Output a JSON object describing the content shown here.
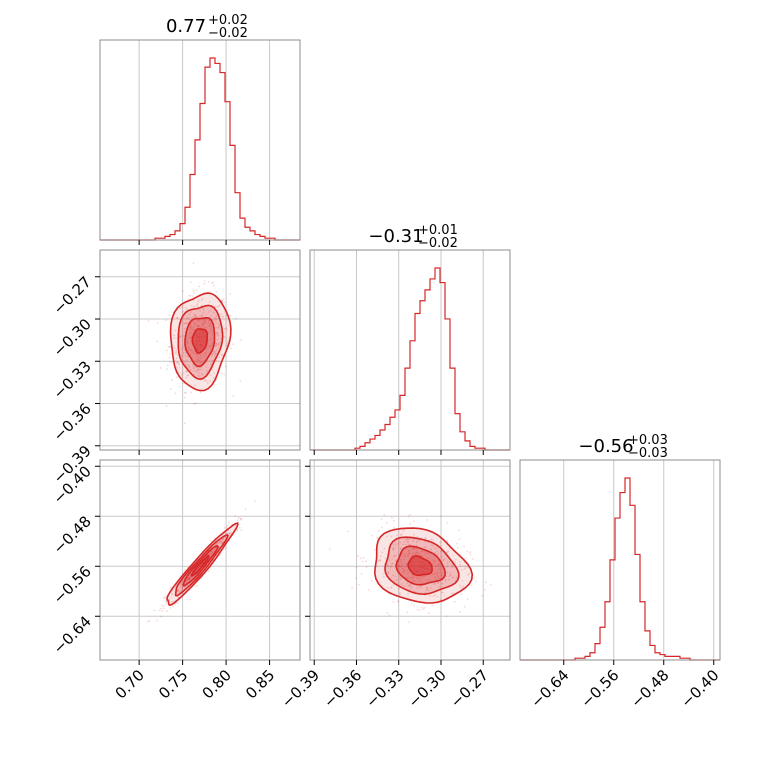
{
  "chart_data": {
    "type": "corner",
    "color": "#d62728",
    "parameters": [
      {
        "summary": "0.77",
        "plus": "+0.02",
        "minus": "−0.02",
        "range": [
          0.655,
          0.885
        ],
        "ticks": [
          0.7,
          0.75,
          0.8,
          0.85
        ],
        "tick_labels": [
          "0.70",
          "0.75",
          "0.80",
          "0.85"
        ]
      },
      {
        "summary": "−0.31",
        "plus": "+0.01",
        "minus": "−0.02",
        "range": [
          -0.393,
          -0.251
        ],
        "ticks": [
          -0.39,
          -0.36,
          -0.33,
          -0.3,
          -0.27
        ],
        "tick_labels": [
          "−0.39",
          "−0.36",
          "−0.33",
          "−0.30",
          "−0.27"
        ]
      },
      {
        "summary": "−0.56",
        "plus": "+0.03",
        "minus": "−0.03",
        "range": [
          -0.71,
          -0.39
        ],
        "ticks": [
          -0.64,
          -0.56,
          -0.48,
          -0.4
        ],
        "tick_labels": [
          "−0.64",
          "−0.56",
          "−0.48",
          "−0.40"
        ]
      }
    ],
    "histograms": [
      {
        "param": 0,
        "counts": [
          0,
          0,
          0,
          0,
          0,
          0,
          0,
          0,
          0,
          0,
          0,
          1,
          1,
          2,
          3,
          5,
          9,
          18,
          36,
          55,
          75,
          95,
          100,
          97,
          92,
          76,
          52,
          26,
          12,
          7,
          5,
          3,
          2,
          1,
          1,
          0,
          0,
          0,
          0,
          0
        ]
      },
      {
        "param": 1,
        "counts": [
          0,
          0,
          0,
          0,
          0,
          0,
          0,
          0,
          0,
          1,
          2,
          4,
          6,
          8,
          11,
          14,
          18,
          22,
          30,
          45,
          60,
          75,
          82,
          88,
          94,
          100,
          92,
          72,
          45,
          20,
          10,
          5,
          2,
          1,
          1,
          0,
          0,
          0,
          0,
          0
        ]
      },
      {
        "param": 2,
        "counts": [
          0,
          0,
          0,
          0,
          0,
          0,
          0,
          0,
          0,
          0,
          0,
          1,
          1,
          2,
          4,
          9,
          18,
          32,
          55,
          78,
          92,
          100,
          85,
          58,
          32,
          16,
          8,
          4,
          3,
          2,
          2,
          2,
          1,
          1,
          0,
          0,
          0,
          0,
          0,
          0
        ]
      }
    ],
    "pairs": [
      {
        "x": 0,
        "y": 1,
        "center": [
          0.77,
          -0.315
        ],
        "spread": [
          0.017,
          0.017
        ],
        "corr": 0.1,
        "contour_radii": [
          0.5,
          1.0,
          1.5,
          2.0
        ]
      },
      {
        "x": 0,
        "y": 2,
        "center": [
          0.77,
          -0.56
        ],
        "spread": [
          0.02,
          0.032
        ],
        "corr": 0.96,
        "contour_radii": [
          0.5,
          1.0,
          1.5,
          2.0
        ]
      },
      {
        "x": 1,
        "y": 2,
        "center": [
          -0.315,
          -0.56
        ],
        "spread": [
          0.017,
          0.03
        ],
        "corr": -0.2,
        "contour_radii": [
          0.5,
          1.0,
          1.5,
          2.0
        ]
      }
    ]
  }
}
